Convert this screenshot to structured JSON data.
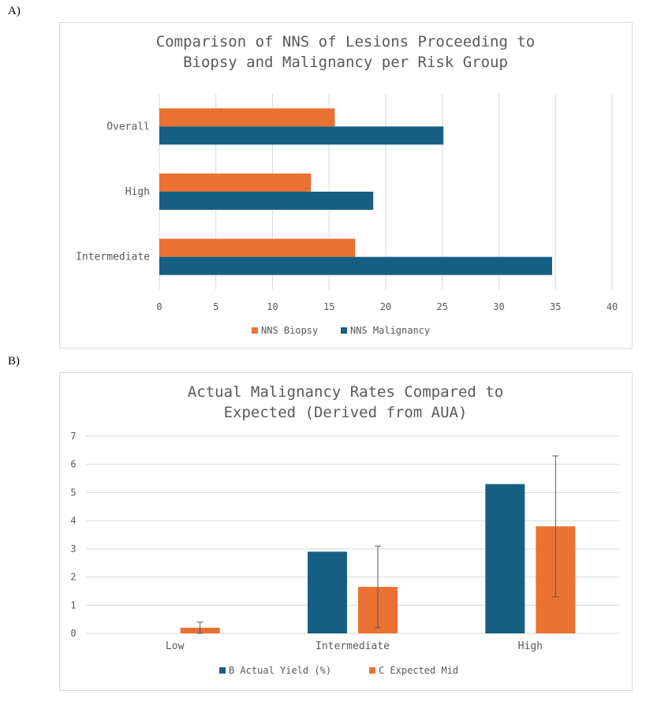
{
  "panel_labels": {
    "a": "A)",
    "b": "B)"
  },
  "colors": {
    "orange": "#E97132",
    "blue": "#156082",
    "grid": "#D9D9D9",
    "error": "#595959"
  },
  "chart_data": [
    {
      "type": "bar",
      "orientation": "horizontal",
      "title_lines": [
        "Comparison of NNS of Lesions Proceeding to",
        "Biopsy and Malignancy per Risk Group"
      ],
      "categories": [
        "Overall",
        "High",
        "Intermediate"
      ],
      "series": [
        {
          "name": "NNS Biopsy",
          "color": "#E97132",
          "values": [
            15.5,
            13.4,
            17.3
          ]
        },
        {
          "name": "NNS Malignancy",
          "color": "#156082",
          "values": [
            25.1,
            18.9,
            34.7
          ]
        }
      ],
      "xlim": [
        0,
        40
      ],
      "xticks": [
        0,
        5,
        10,
        15,
        20,
        25,
        30,
        35,
        40
      ],
      "grid": true,
      "legend": "bottom"
    },
    {
      "type": "bar",
      "orientation": "vertical",
      "title_lines": [
        "Actual Malignancy Rates Compared to",
        "Expected (Derived from AUA)"
      ],
      "categories": [
        "Low",
        "Intermediate",
        "High"
      ],
      "series": [
        {
          "name": "B Actual Yield (%)",
          "color": "#156082",
          "values": [
            0,
            2.9,
            5.3
          ]
        },
        {
          "name": "C Expected Mid",
          "color": "#E97132",
          "values": [
            0.2,
            1.65,
            3.8
          ],
          "error_low": [
            0,
            0.2,
            1.3
          ],
          "error_high": [
            0.4,
            3.1,
            6.3
          ]
        }
      ],
      "ylim": [
        0,
        7
      ],
      "yticks": [
        0,
        1,
        2,
        3,
        4,
        5,
        6,
        7
      ],
      "grid": true,
      "legend": "bottom"
    }
  ]
}
